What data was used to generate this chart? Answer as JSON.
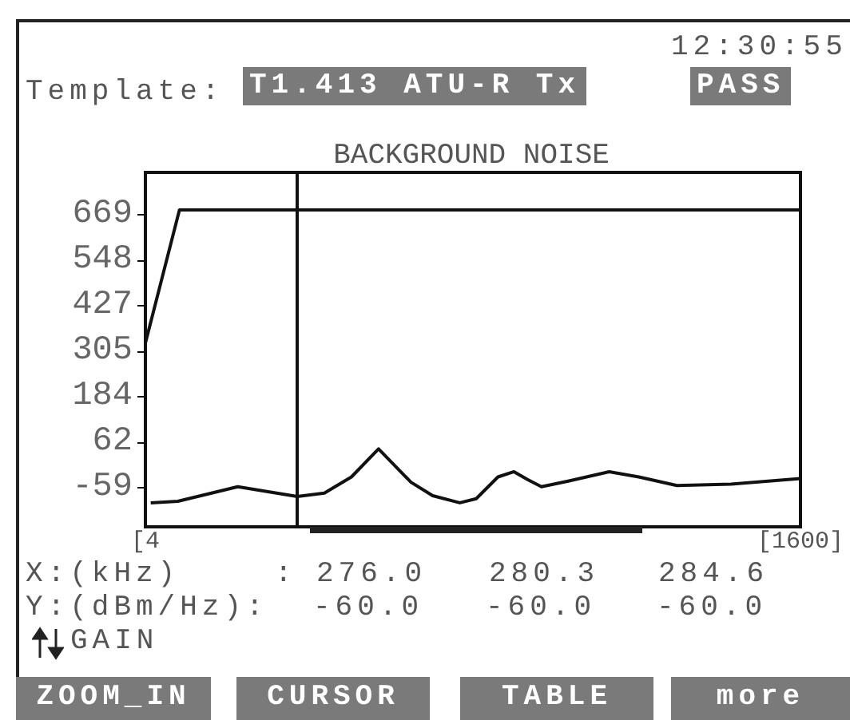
{
  "chart_data": {
    "type": "line",
    "title": "BACKGROUND NOISE",
    "x": [
      4,
      87,
      1600
    ],
    "series": [
      {
        "color": "#111111",
        "values": [
          327,
          682,
          682
        ]
      },
      {
        "color": "#111111",
        "x": [
          17,
          83,
          229,
          374,
          440,
          506,
          572,
          651,
          704,
          770,
          810,
          863,
          902,
          935,
          969,
          1034,
          1134,
          1206,
          1299,
          1431,
          1600
        ],
        "values": [
          -99,
          -95,
          -56,
          -82,
          -73,
          -30,
          45,
          -44,
          -80,
          -99,
          -88,
          -30,
          -16,
          -37,
          -56,
          -41,
          -16,
          -30,
          -53,
          -49,
          -34
        ]
      }
    ],
    "xlim": [
      4,
      1600
    ],
    "xticks": [
      {
        "value": 4,
        "label": "[4"
      },
      {
        "value": 1600,
        "label": "[1600]"
      }
    ],
    "ylim": [
      -163,
      782
    ],
    "yticks": [
      -59,
      62,
      184,
      305,
      427,
      548,
      669
    ],
    "ref_lines": [
      {
        "axis": "x",
        "value": 374,
        "color": "#111111"
      }
    ],
    "grid": false,
    "marker": "none",
    "line_style": "solid",
    "annotations": [
      "12:30:55",
      "Template:",
      "T1.413 ATU-R Tx",
      "PASS",
      "X:(kHz)",
      ":",
      "276.0",
      "280.3",
      "284.6",
      "Y:(dBm/Hz):",
      "-60.0",
      "-60.0",
      "-60.0",
      "GAIN",
      "ZOOM_IN",
      "CURSOR",
      "TABLE",
      "more"
    ]
  }
}
